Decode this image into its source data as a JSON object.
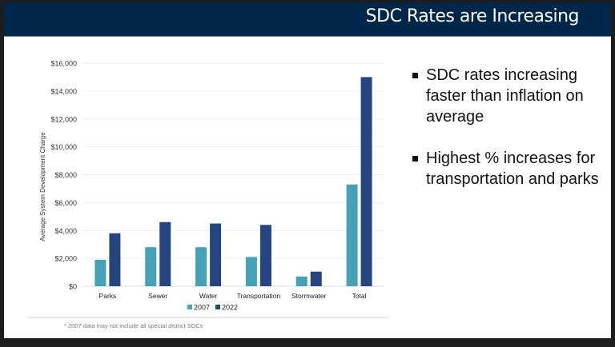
{
  "slide": {
    "title": "SDC Rates are Increasing",
    "bullets": [
      "SDC rates increasing faster than inflation on average",
      "Highest % increases for transportation and parks"
    ],
    "footnote": "* 2007 data may not include all special district SDCs"
  },
  "chart_data": {
    "type": "bar",
    "categories": [
      "Parks",
      "Sewer",
      "Water",
      "Transportation",
      "Stormwater",
      "Total"
    ],
    "series": [
      {
        "name": "2007",
        "color": "#45a1b5",
        "values": [
          1900,
          2800,
          2800,
          2100,
          700,
          7300
        ]
      },
      {
        "name": "2022",
        "color": "#254580",
        "values": [
          3800,
          4600,
          4500,
          4400,
          1050,
          15000
        ]
      }
    ],
    "ylabel": "Average System Development Charge",
    "ylim": [
      0,
      16000
    ],
    "yticks": [
      "$0",
      "$2,000",
      "$4,000",
      "$6,000",
      "$8,000",
      "$10,000",
      "$12,000",
      "$14,000",
      "$16,000"
    ],
    "grid": true,
    "legend": "bottom"
  }
}
